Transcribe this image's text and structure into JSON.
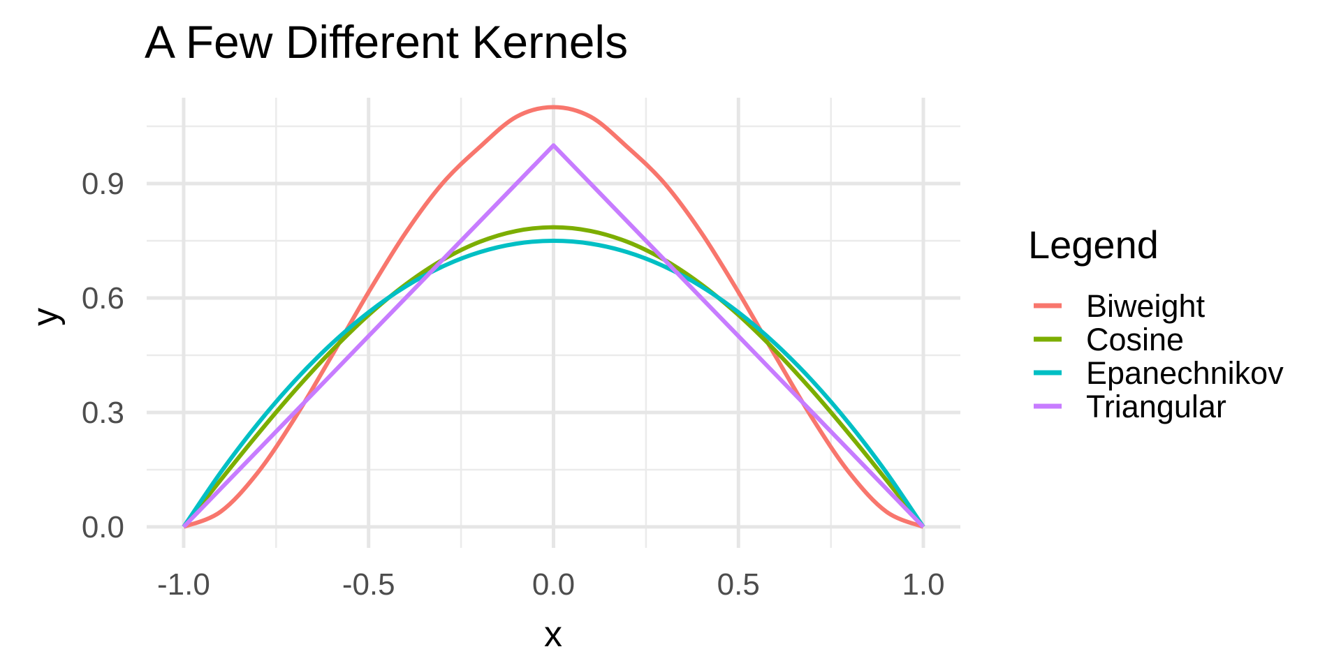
{
  "chart_data": {
    "type": "line",
    "title": "A Few Different Kernels",
    "xlabel": "x",
    "ylabel": "y",
    "xlim": [
      -1.1,
      1.1
    ],
    "ylim": [
      -0.055,
      1.125
    ],
    "x_ticks": [
      -1.0,
      -0.5,
      0.0,
      0.5,
      1.0
    ],
    "x_tick_labels": [
      "-1.0",
      "-0.5",
      "0.0",
      "0.5",
      "1.0"
    ],
    "y_ticks": [
      0.0,
      0.3,
      0.6,
      0.9
    ],
    "y_tick_labels": [
      "0.0",
      "0.3",
      "0.6",
      "0.9"
    ],
    "grid": true,
    "legend_title": "Legend",
    "legend_position": "right",
    "x": [
      -1.0,
      -0.9,
      -0.8,
      -0.7,
      -0.6,
      -0.5,
      -0.4,
      -0.3,
      -0.2,
      -0.1,
      0.0,
      0.1,
      0.2,
      0.3,
      0.4,
      0.5,
      0.6,
      0.7,
      0.8,
      0.9,
      1.0
    ],
    "series": [
      {
        "name": "Biweight",
        "color": "#F8766D",
        "values": [
          0.0,
          0.0397,
          0.1418,
          0.2844,
          0.448,
          0.6152,
          0.7706,
          0.9005,
          0.9953,
          1.0752,
          1.1003,
          1.0752,
          0.9953,
          0.9005,
          0.7706,
          0.6152,
          0.448,
          0.2844,
          0.1418,
          0.0397,
          0.0
        ]
      },
      {
        "name": "Cosine",
        "color": "#7CAE00",
        "values": [
          0.0,
          0.1229,
          0.2427,
          0.3566,
          0.4617,
          0.5554,
          0.6354,
          0.6998,
          0.747,
          0.7757,
          0.7854,
          0.7757,
          0.747,
          0.6998,
          0.6354,
          0.5554,
          0.4617,
          0.3566,
          0.2427,
          0.1229,
          0.0
        ]
      },
      {
        "name": "Epanechnikov",
        "color": "#00BFC4",
        "values": [
          0.0,
          0.1425,
          0.27,
          0.3825,
          0.48,
          0.5625,
          0.63,
          0.6825,
          0.72,
          0.7425,
          0.75,
          0.7425,
          0.72,
          0.6825,
          0.63,
          0.5625,
          0.48,
          0.3825,
          0.27,
          0.1425,
          0.0
        ]
      },
      {
        "name": "Triangular",
        "color": "#C77CFF",
        "values": [
          0.0,
          0.1,
          0.2,
          0.3,
          0.4,
          0.5,
          0.6,
          0.7,
          0.8,
          0.9,
          1.0,
          0.9,
          0.8,
          0.7,
          0.6,
          0.5,
          0.4,
          0.3,
          0.2,
          0.1,
          0.0
        ]
      }
    ]
  }
}
